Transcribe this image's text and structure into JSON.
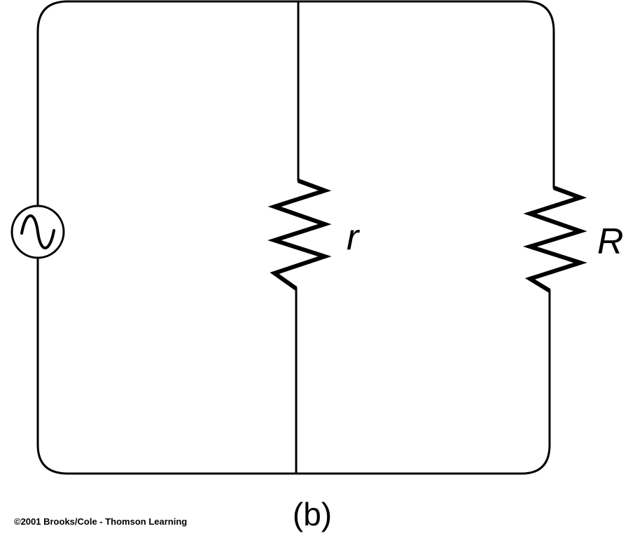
{
  "diagram": {
    "type": "circuit",
    "components": [
      {
        "id": "source",
        "kind": "ac-source",
        "symbol": "~"
      },
      {
        "id": "r",
        "kind": "resistor",
        "label": "r"
      },
      {
        "id": "R",
        "kind": "resistor",
        "label": "R"
      }
    ],
    "connection": "parallel"
  },
  "labels": {
    "resistor_small": "r",
    "resistor_large": "R",
    "caption": "(b)"
  },
  "footer": {
    "copyright": "©2001 Brooks/Cole - Thomson Learning"
  },
  "colors": {
    "line": "#000000",
    "background": "#ffffff"
  }
}
